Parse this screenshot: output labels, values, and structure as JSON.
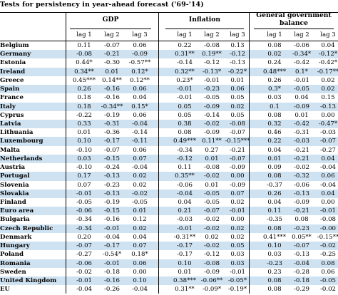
{
  "title": "Tests for persistency in year-ahead forecast ('69-'14)",
  "groups": [
    {
      "label": "GDP",
      "subs": [
        "lag 1",
        "lag 2",
        "lag 3"
      ]
    },
    {
      "label": "Inflation",
      "subs": [
        "lag 1",
        "lag 2",
        "lag 3"
      ]
    },
    {
      "label": "General government balance",
      "subs": [
        "lag 1",
        "lag 2",
        "lag 3"
      ]
    }
  ],
  "rows": [
    {
      "name": "Belgium",
      "v": [
        "0.11",
        "-0.07",
        "0.06",
        "0.22",
        "-0.08",
        "0.13",
        "0.08",
        "-0.06",
        "0.04"
      ]
    },
    {
      "name": "Germany",
      "v": [
        "-0.08",
        "-0.21",
        "-0.09",
        "0.31**",
        "0.19**",
        "-0.12",
        "0.02",
        "-0.34*",
        "-0.12*"
      ]
    },
    {
      "name": "Estonia",
      "v": [
        "0.44*",
        "-0.30",
        "-0.57**",
        "-0.14",
        "-0.12",
        "-0.13",
        "0.24",
        "-0.42",
        "-0.42*"
      ]
    },
    {
      "name": "Ireland",
      "v": [
        "0.34**",
        "0.01",
        "0.12*",
        "0.32**",
        "-0.13*",
        "-0.22*",
        "0.48***",
        "0.1*",
        "-0.17**"
      ]
    },
    {
      "name": "Greece",
      "v": [
        "0.45***",
        "0.14**",
        "0.12**",
        "0.23*",
        "-0.01",
        "0.01",
        "0.26",
        "-0.01",
        "0.02"
      ]
    },
    {
      "name": "Spain",
      "v": [
        "0.26",
        "-0.16",
        "0.06",
        "-0.01",
        "-0.23",
        "0.06",
        "0.3*",
        "-0.05",
        "0.02"
      ]
    },
    {
      "name": "France",
      "v": [
        "0.18",
        "-0.16",
        "0.04",
        "-0.01",
        "-0.05",
        "0.05",
        "0.03",
        "0.04",
        "0.15"
      ]
    },
    {
      "name": "Italy",
      "v": [
        "0.18",
        "-0.34**",
        "0.15*",
        "0.05",
        "-0.09",
        "0.02",
        "0.1",
        "-0.09",
        "-0.13"
      ]
    },
    {
      "name": "Cyprus",
      "v": [
        "-0.22",
        "-0.19",
        "0.06",
        "0.05",
        "-0.14",
        "0.05",
        "0.08",
        "0.01",
        "0.00"
      ]
    },
    {
      "name": "Latvia",
      "v": [
        "0.33",
        "-0.31",
        "-0.04",
        "0.38",
        "-0.02",
        "-0.08",
        "0.32",
        "-0.42",
        "-0.47*"
      ]
    },
    {
      "name": "Lithuania",
      "v": [
        "0.01",
        "-0.36",
        "-0.14",
        "0.08",
        "-0.09",
        "-0.07",
        "0.46",
        "-0.31",
        "-0.03"
      ]
    },
    {
      "name": "Luxembourg",
      "v": [
        "0.10",
        "-0.17",
        "-0.11",
        "0.49***",
        "0.11**",
        "-0.15***",
        "0.22",
        "-0.03",
        "-0.07"
      ]
    },
    {
      "name": "Malta",
      "v": [
        "-0.10",
        "-0.07",
        "0.06",
        "-0.34",
        "0.27",
        "-0.21",
        "0.04",
        "-0.21",
        "-0.27"
      ]
    },
    {
      "name": "Netherlands",
      "v": [
        "0.03",
        "-0.15",
        "0.07",
        "-0.12",
        "0.01",
        "-0.07",
        "0.01",
        "-0.21",
        "0.04"
      ]
    },
    {
      "name": "Austria",
      "v": [
        "-0.10",
        "-0.24",
        "-0.04",
        "0.11",
        "-0.08",
        "-0.09",
        "0.09",
        "-0.02",
        "-0.04"
      ]
    },
    {
      "name": "Portugal",
      "v": [
        "0.17",
        "-0.13",
        "0.02",
        "0.35**",
        "-0.02",
        "0.00",
        "0.08",
        "-0.32",
        "0.06"
      ]
    },
    {
      "name": "Slovenia",
      "v": [
        "0.07",
        "-0.23",
        "0.02",
        "-0.06",
        "0.01",
        "-0.09",
        "-0.37",
        "-0.06",
        "-0.04"
      ]
    },
    {
      "name": "Slovakia",
      "v": [
        "-0.01",
        "-0.13",
        "-0.02",
        "-0.04",
        "-0.05",
        "0.07",
        "0.26",
        "-0.13",
        "0.04"
      ]
    },
    {
      "name": "Finland",
      "v": [
        "-0.05",
        "-0.19",
        "-0.05",
        "0.04",
        "-0.05",
        "0.02",
        "0.04",
        "-0.09",
        "0.00"
      ]
    },
    {
      "name": "Euro area",
      "v": [
        "-0.06",
        "-0.15",
        "0.01",
        "0.21",
        "-0.07",
        "-0.01",
        "0.11",
        "-0.21",
        "-0.01"
      ]
    },
    {
      "name": "Bulgaria",
      "v": [
        "-0.34",
        "-0.16",
        "0.12",
        "-0.03",
        "-0.02",
        "0.00",
        "-0.35",
        "0.08",
        "-0.08"
      ]
    },
    {
      "name": "Czech Republic",
      "v": [
        "-0.34",
        "-0.01",
        "0.02",
        "-0.01",
        "-0.02",
        "0.02",
        "0.08",
        "-0.23",
        "-0.00"
      ]
    },
    {
      "name": "Denmark",
      "v": [
        "0.20",
        "-0.04",
        "0.04",
        "-0.31**",
        "0.02",
        "0.02",
        "0.41***",
        "0.05**",
        "-0.15**"
      ]
    },
    {
      "name": "Hungary",
      "v": [
        "-0.07",
        "-0.17",
        "0.07",
        "-0.17",
        "-0.02",
        "0.05",
        "0.10",
        "-0.07",
        "-0.02"
      ]
    },
    {
      "name": "Poland",
      "v": [
        "-0.27",
        "-0.54*",
        "0.18*",
        "-0.17",
        "-0.12",
        "0.03",
        "0.03",
        "-0.13",
        "-0.25"
      ]
    },
    {
      "name": "Romania",
      "v": [
        "-0.06",
        "-0.01",
        "0.06",
        "0.10",
        "-0.08",
        "0.03",
        "-0.23",
        "-0.04",
        "0.08"
      ]
    },
    {
      "name": "Sweden",
      "v": [
        "-0.02",
        "-0.18",
        "0.00",
        "0.01",
        "-0.09",
        "-0.01",
        "0.23",
        "-0.28",
        "0.06"
      ]
    },
    {
      "name": "United Kingdom",
      "v": [
        "-0.01",
        "-0.16",
        "0.10",
        "0.38***",
        "-0.06**",
        "-0.05*",
        "0.08",
        "-0.18",
        "-0.05"
      ]
    },
    {
      "name": "EU",
      "v": [
        "-0.04",
        "-0.26",
        "-0.04",
        "0.31**",
        "-0.09*",
        "-0.19*",
        "0.08",
        "-0.29",
        "-0.02"
      ]
    }
  ],
  "shade_color": "#cfe2f1"
}
